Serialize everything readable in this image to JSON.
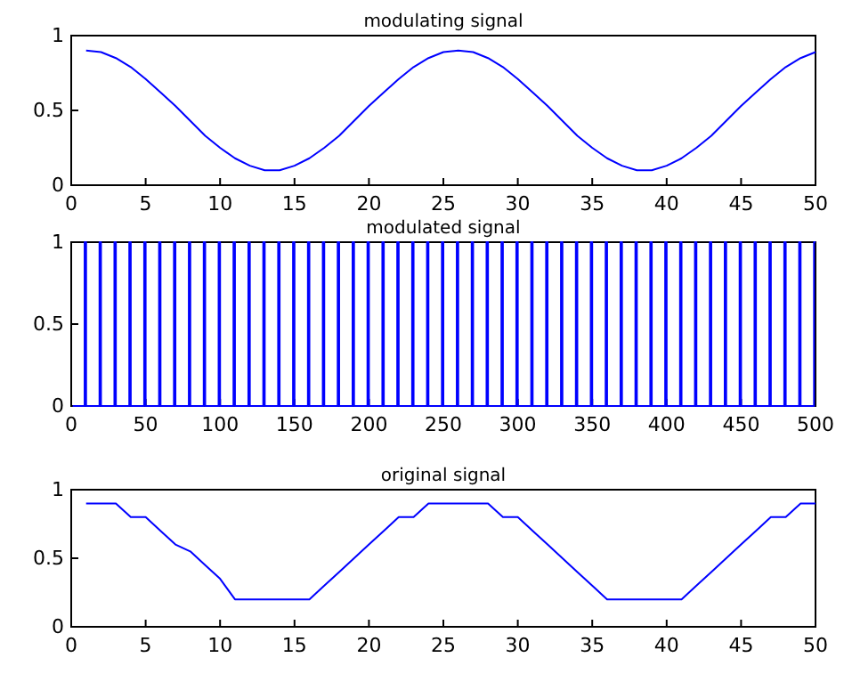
{
  "chart_data": [
    {
      "type": "line",
      "title": "modulating signal",
      "xlim": [
        0,
        50
      ],
      "ylim": [
        0,
        1
      ],
      "xticks": [
        0,
        5,
        10,
        15,
        20,
        25,
        30,
        35,
        40,
        45,
        50
      ],
      "yticks": [
        0,
        0.5,
        1
      ],
      "x": [
        1,
        2,
        3,
        4,
        5,
        6,
        7,
        8,
        9,
        10,
        11,
        12,
        13,
        14,
        15,
        16,
        17,
        18,
        19,
        20,
        21,
        22,
        23,
        24,
        25,
        26,
        27,
        28,
        29,
        30,
        31,
        32,
        33,
        34,
        35,
        36,
        37,
        38,
        39,
        40,
        41,
        42,
        43,
        44,
        45,
        46,
        47,
        48,
        49,
        50
      ],
      "series": [
        {
          "color": "#0000ff",
          "values": [
            0.9,
            0.89,
            0.85,
            0.79,
            0.71,
            0.62,
            0.53,
            0.43,
            0.33,
            0.25,
            0.18,
            0.13,
            0.1,
            0.1,
            0.13,
            0.18,
            0.25,
            0.33,
            0.43,
            0.53,
            0.62,
            0.71,
            0.79,
            0.85,
            0.89,
            0.9,
            0.89,
            0.85,
            0.79,
            0.71,
            0.62,
            0.53,
            0.43,
            0.33,
            0.25,
            0.18,
            0.13,
            0.1,
            0.1,
            0.13,
            0.18,
            0.25,
            0.33,
            0.43,
            0.53,
            0.62,
            0.71,
            0.79,
            0.85,
            0.89
          ]
        }
      ]
    },
    {
      "type": "line",
      "title": "modulated signal",
      "xlim": [
        0,
        500
      ],
      "ylim": [
        0,
        1
      ],
      "xticks": [
        0,
        50,
        100,
        150,
        200,
        250,
        300,
        350,
        400,
        450,
        500
      ],
      "yticks": [
        0,
        0.5,
        1
      ],
      "x": [
        1,
        9,
        9,
        10,
        10,
        19,
        19,
        20,
        20,
        29,
        29,
        30,
        30,
        39,
        39,
        40,
        40,
        49,
        49,
        50,
        50,
        59,
        59,
        60,
        60,
        69,
        69,
        70,
        70,
        79,
        79,
        80,
        80,
        89,
        89,
        90,
        90,
        99,
        99,
        100,
        100,
        109,
        109,
        110,
        110,
        119,
        119,
        120,
        120,
        129,
        129,
        130,
        130,
        139,
        139,
        140,
        140,
        149,
        149,
        150,
        150,
        159,
        159,
        160,
        160,
        169,
        169,
        170,
        170,
        179,
        179,
        180,
        180,
        189,
        189,
        190,
        190,
        199,
        199,
        200,
        200,
        209,
        209,
        210,
        210,
        219,
        219,
        220,
        220,
        229,
        229,
        230,
        230,
        239,
        239,
        240,
        240,
        249,
        249,
        250,
        250,
        259,
        259,
        260,
        260,
        269,
        269,
        270,
        270,
        279,
        279,
        280,
        280,
        289,
        289,
        290,
        290,
        299,
        299,
        300,
        300,
        309,
        309,
        310,
        310,
        319,
        319,
        320,
        320,
        329,
        329,
        330,
        330,
        339,
        339,
        340,
        340,
        349,
        349,
        350,
        350,
        359,
        359,
        360,
        360,
        369,
        369,
        370,
        370,
        379,
        379,
        380,
        380,
        389,
        389,
        390,
        390,
        399,
        399,
        400,
        400,
        409,
        409,
        410,
        410,
        419,
        419,
        420,
        420,
        429,
        429,
        430,
        430,
        439,
        439,
        440,
        440,
        449,
        449,
        450,
        450,
        459,
        459,
        460,
        460,
        469,
        469,
        470,
        470,
        479,
        479,
        480,
        480,
        489,
        489,
        490,
        490,
        499,
        499,
        500
      ],
      "series": [
        {
          "color": "#0000ff",
          "values": [
            0,
            0,
            1,
            1,
            0,
            0,
            1,
            1,
            0,
            0,
            1,
            1,
            0,
            0,
            1,
            1,
            0,
            0,
            1,
            1,
            0,
            0,
            1,
            1,
            0,
            0,
            1,
            1,
            0,
            0,
            1,
            1,
            0,
            0,
            1,
            1,
            0,
            0,
            1,
            1,
            0,
            0,
            1,
            1,
            0,
            0,
            1,
            1,
            0,
            0,
            1,
            1,
            0,
            0,
            1,
            1,
            0,
            0,
            1,
            1,
            0,
            0,
            1,
            1,
            0,
            0,
            1,
            1,
            0,
            0,
            1,
            1,
            0,
            0,
            1,
            1,
            0,
            0,
            1,
            1,
            0,
            0,
            1,
            1,
            0,
            0,
            1,
            1,
            0,
            0,
            1,
            1,
            0,
            0,
            1,
            1,
            0,
            0,
            1,
            1,
            0,
            0,
            1,
            1,
            0,
            0,
            1,
            1,
            0,
            0,
            1,
            1,
            0,
            0,
            1,
            1,
            0,
            0,
            1,
            1,
            0,
            0,
            1,
            1,
            0,
            0,
            1,
            1,
            0,
            0,
            1,
            1,
            0,
            0,
            1,
            1,
            0,
            0,
            1,
            1,
            0,
            0,
            1,
            1,
            0,
            0,
            1,
            1,
            0,
            0,
            1,
            1,
            0,
            0,
            1,
            1,
            0,
            0,
            1,
            1,
            0,
            0,
            1,
            1,
            0,
            0,
            1,
            1,
            0,
            0,
            1,
            1,
            0,
            0,
            1,
            1,
            0,
            0,
            1,
            1,
            0,
            0,
            1,
            1,
            0,
            0,
            1,
            1,
            0,
            0,
            1,
            1,
            0,
            0,
            1,
            1,
            0,
            0,
            1,
            1
          ]
        }
      ]
    },
    {
      "type": "line",
      "title": "original signal",
      "xlim": [
        0,
        50
      ],
      "ylim": [
        0,
        1
      ],
      "xticks": [
        0,
        5,
        10,
        15,
        20,
        25,
        30,
        35,
        40,
        45,
        50
      ],
      "yticks": [
        0,
        0.5,
        1
      ],
      "x": [
        1,
        2,
        3,
        4,
        5,
        6,
        7,
        8,
        9,
        10,
        11,
        12,
        13,
        14,
        15,
        16,
        17,
        18,
        19,
        20,
        21,
        22,
        23,
        24,
        25,
        26,
        27,
        28,
        29,
        30,
        31,
        32,
        33,
        34,
        35,
        36,
        37,
        38,
        39,
        40,
        41,
        42,
        43,
        44,
        45,
        46,
        47,
        48,
        49,
        50
      ],
      "series": [
        {
          "color": "#0000ff",
          "values": [
            0.9,
            0.9,
            0.9,
            0.8,
            0.8,
            0.7,
            0.6,
            0.55,
            0.45,
            0.35,
            0.2,
            0.2,
            0.2,
            0.2,
            0.2,
            0.2,
            0.3,
            0.4,
            0.5,
            0.6,
            0.7,
            0.8,
            0.8,
            0.9,
            0.9,
            0.9,
            0.9,
            0.9,
            0.8,
            0.8,
            0.7,
            0.6,
            0.5,
            0.4,
            0.3,
            0.2,
            0.2,
            0.2,
            0.2,
            0.2,
            0.2,
            0.3,
            0.4,
            0.5,
            0.6,
            0.7,
            0.8,
            0.8,
            0.9,
            0.9
          ]
        }
      ]
    }
  ]
}
